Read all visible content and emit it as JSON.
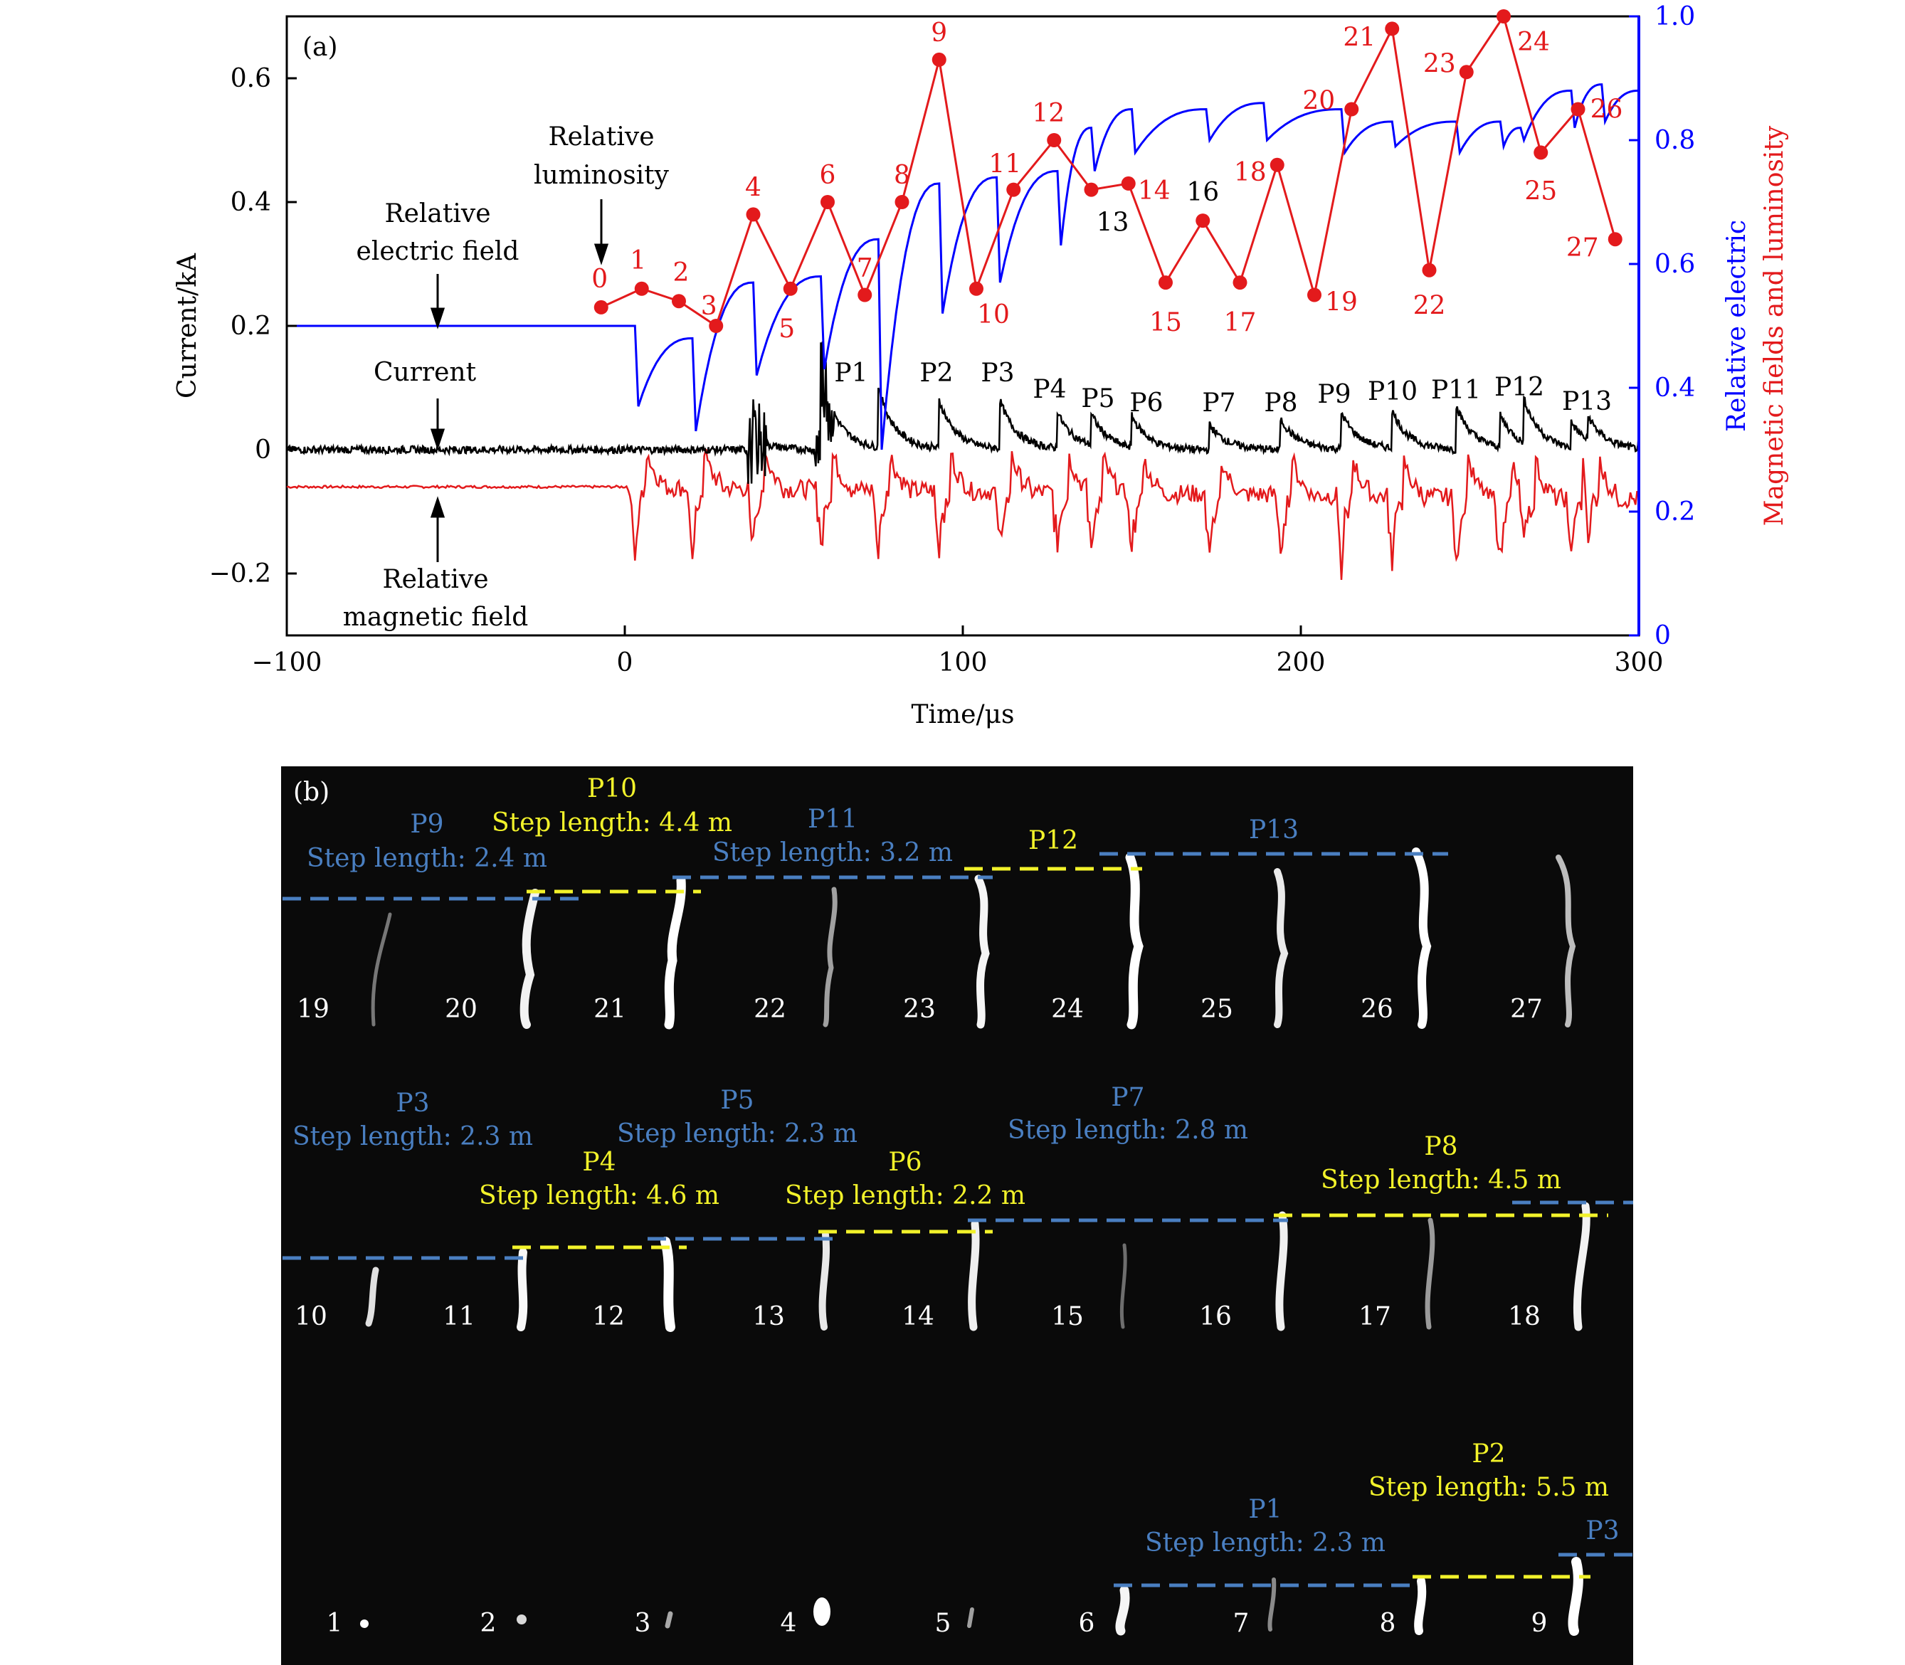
{
  "panel_a": {
    "panel_label": "(a)",
    "x_axis": {
      "label": "Time/μs",
      "ticks": [
        "−100",
        "0",
        "100",
        "200",
        "300"
      ],
      "range": [
        -100,
        300
      ]
    },
    "y_left": {
      "label": "Current/kA",
      "ticks": [
        "0.6",
        "0.4",
        "0.2",
        "0",
        "−0.2"
      ],
      "range": [
        -0.3,
        0.7
      ]
    },
    "y_right": {
      "label_line1": "Relative electric",
      "label_line2": "Magnetic fields and luminosity",
      "ticks": [
        "1.0",
        "0.8",
        "0.6",
        "0.4",
        "0.2",
        "0"
      ],
      "range": [
        0,
        1
      ]
    },
    "annotations": {
      "luminosity_l1": "Relative",
      "luminosity_l2": "luminosity",
      "efield_l1": "Relative",
      "efield_l2": "electric field",
      "current": "Current",
      "bfield_l1": "Relative",
      "bfield_l2": "magnetic field"
    },
    "pulse_labels": [
      "P1",
      "P2",
      "P3",
      "P4",
      "P5",
      "P6",
      "P7",
      "P8",
      "P9",
      "P10",
      "P11",
      "P12",
      "P13"
    ],
    "colors": {
      "current": "#000000",
      "efield": "#0000ff",
      "bfield": "#e31a1c",
      "luminosity": "#e31a1c"
    }
  },
  "panel_b": {
    "panel_label": "(b)",
    "row3_frames": [
      "19",
      "20",
      "21",
      "22",
      "23",
      "24",
      "25",
      "26",
      "27"
    ],
    "row2_frames": [
      "10",
      "11",
      "12",
      "13",
      "14",
      "15",
      "16",
      "17",
      "18"
    ],
    "row1_frames": [
      "1",
      "2",
      "3",
      "4",
      "5",
      "6",
      "7",
      "8",
      "9"
    ],
    "steps": [
      {
        "pulse": "P9",
        "text": "Step length: 2.4 m",
        "color": "#4a7fc1"
      },
      {
        "pulse": "P10",
        "text": "Step length: 4.4 m",
        "color": "#f2f22a"
      },
      {
        "pulse": "P11",
        "text": "Step length: 3.2 m",
        "color": "#4a7fc1"
      },
      {
        "pulse": "P12",
        "text": "",
        "color": "#f2f22a"
      },
      {
        "pulse": "P13",
        "text": "",
        "color": "#4a7fc1"
      },
      {
        "pulse": "P3",
        "text": "Step length: 2.3 m",
        "color": "#4a7fc1"
      },
      {
        "pulse": "P4",
        "text": "Step length: 4.6 m",
        "color": "#f2f22a"
      },
      {
        "pulse": "P5",
        "text": "Step length: 2.3 m",
        "color": "#4a7fc1"
      },
      {
        "pulse": "P6",
        "text": "Step length: 2.2 m",
        "color": "#f2f22a"
      },
      {
        "pulse": "P7",
        "text": "Step length: 2.8 m",
        "color": "#4a7fc1"
      },
      {
        "pulse": "P8",
        "text": "Step length: 4.5 m",
        "color": "#f2f22a"
      },
      {
        "pulse": "P1",
        "text": "Step length: 2.3 m",
        "color": "#4a7fc1"
      },
      {
        "pulse": "P2",
        "text": "Step length: 5.5 m",
        "color": "#f2f22a"
      },
      {
        "pulse": "P3",
        "text": "",
        "color": "#4a7fc1"
      }
    ]
  },
  "chart_data": {
    "type": "line",
    "xlabel": "Time/μs",
    "ylabel": "Current/kA",
    "y2label": "Relative electric Magnetic fields and luminosity",
    "xlim": [
      -100,
      300
    ],
    "ylim": [
      -0.3,
      0.7
    ],
    "y2lim": [
      0,
      1
    ],
    "grid": false,
    "series": [
      {
        "name": "Relative luminosity",
        "axis": "right",
        "x": [
          -7,
          5,
          16,
          27,
          38,
          49,
          60,
          71,
          82,
          93,
          104,
          115,
          127,
          138,
          149,
          160,
          171,
          182,
          193,
          204,
          215,
          227,
          238,
          249,
          260,
          271,
          282,
          293
        ],
        "y": [
          0.53,
          0.56,
          0.54,
          0.5,
          0.68,
          0.56,
          0.7,
          0.55,
          0.7,
          0.93,
          0.56,
          0.72,
          0.8,
          0.72,
          0.73,
          0.57,
          0.67,
          0.57,
          0.76,
          0.55,
          0.85,
          0.98,
          0.59,
          0.91,
          1.0,
          0.78,
          0.85,
          0.64
        ],
        "point_labels": [
          "0",
          "1",
          "2",
          "3",
          "4",
          "5",
          "6",
          "7",
          "8",
          "9",
          "10",
          "11",
          "12",
          "13",
          "14",
          "15",
          "16",
          "17",
          "18",
          "19",
          "20",
          "21",
          "22",
          "23",
          "24",
          "25",
          "26",
          "27"
        ]
      },
      {
        "name": "Relative electric field",
        "axis": "right",
        "x": [
          -100,
          -17,
          0,
          3,
          4,
          20,
          21,
          38,
          39,
          58,
          59,
          75,
          76,
          93,
          94,
          110,
          111,
          128,
          129,
          138,
          139,
          150,
          151,
          172,
          173,
          189,
          190,
          212,
          213,
          227,
          228,
          246,
          247,
          259,
          260,
          265,
          266,
          280,
          281,
          289,
          290,
          300
        ],
        "y": [
          0.5,
          0.5,
          0.5,
          0.5,
          0.37,
          0.48,
          0.33,
          0.57,
          0.42,
          0.58,
          0.43,
          0.64,
          0.3,
          0.73,
          0.52,
          0.74,
          0.57,
          0.75,
          0.63,
          0.82,
          0.75,
          0.85,
          0.78,
          0.85,
          0.8,
          0.86,
          0.8,
          0.85,
          0.78,
          0.83,
          0.79,
          0.83,
          0.78,
          0.83,
          0.79,
          0.82,
          0.8,
          0.88,
          0.82,
          0.89,
          0.83,
          0.88
        ]
      },
      {
        "name": "Current",
        "axis": "left",
        "x": [
          -100,
          -1,
          3,
          20,
          38,
          58,
          75,
          93,
          111,
          128,
          138,
          150,
          173,
          194,
          212,
          227,
          246,
          259,
          266,
          280,
          285,
          300
        ],
        "peak_y": [
          0,
          0,
          0,
          0,
          0.02,
          0.13,
          0.1,
          0.08,
          0.08,
          0.06,
          0.05,
          0.05,
          0.04,
          0.05,
          0.06,
          0.06,
          0.07,
          0.05,
          0.07,
          0.04,
          0.04,
          0.02
        ]
      },
      {
        "name": "Relative magnetic field",
        "axis": "right",
        "x": [
          -100,
          0,
          300
        ],
        "y": [
          0.24,
          0.24,
          0.22
        ]
      }
    ],
    "annotations": [
      "P1",
      "P2",
      "P3",
      "P4",
      "P5",
      "P6",
      "P7",
      "P8",
      "P9",
      "P10",
      "P11",
      "P12",
      "P13"
    ]
  }
}
